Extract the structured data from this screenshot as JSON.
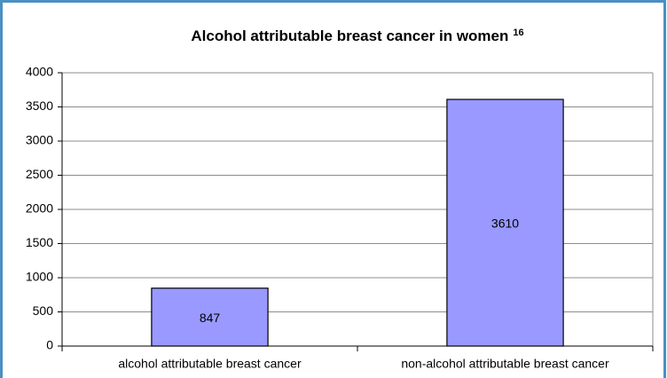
{
  "chart_data": {
    "type": "bar",
    "title": "Alcohol attributable breast cancer in women",
    "title_superscript": "16",
    "categories": [
      "alcohol attributable breast cancer",
      "non-alcohol attributable breast cancer"
    ],
    "values": [
      847,
      3610
    ],
    "color": "#9999ff",
    "ylim": [
      0,
      4000
    ],
    "yticks": [
      0,
      500,
      1000,
      1500,
      2000,
      2500,
      3000,
      3500,
      4000
    ],
    "grid": true
  }
}
